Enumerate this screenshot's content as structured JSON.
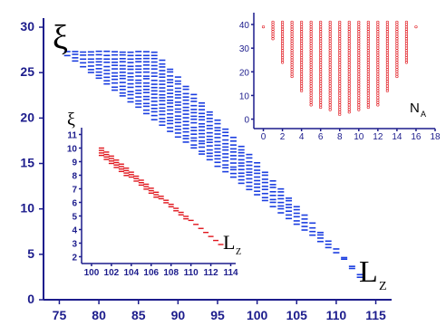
{
  "chart_data": [
    {
      "id": "main",
      "type": "scatter",
      "marker": "dash",
      "color": "#1a3de0",
      "xlabel": "L",
      "xlabel_sub": "Z",
      "ylabel": "ξ",
      "xlim": [
        73,
        117
      ],
      "ylim": [
        0,
        31
      ],
      "x_ticks": [
        "75",
        "80",
        "85",
        "90",
        "95",
        "100",
        "105",
        "110",
        "115"
      ],
      "y_ticks": [
        "0",
        "5",
        "10",
        "15",
        "20",
        "25",
        "30"
      ],
      "envelope": {
        "x_start": 76,
        "x_end": 113,
        "top_y": 27.3,
        "top_flat_until": 87,
        "top_slope": -0.945,
        "bottom_y_at_start": 26.9,
        "bottom_slope": -0.64,
        "bottom_min_y": 2.6
      }
    },
    {
      "id": "inset-lower-left",
      "type": "scatter",
      "marker": "dash",
      "color": "#e0141b",
      "xlabel": "L",
      "xlabel_sub": "Z",
      "ylabel": "ξ",
      "xlim": [
        99,
        114.5
      ],
      "ylim": [
        1.5,
        11.5
      ],
      "x_ticks": [
        "100",
        "102",
        "104",
        "106",
        "108",
        "110",
        "112",
        "114"
      ],
      "y_ticks": [
        "2",
        "3",
        "4",
        "5",
        "6",
        "7",
        "8",
        "9",
        "10",
        "11"
      ],
      "diagonal": {
        "x_start": 101,
        "x_end": 113,
        "y_start": 10.0,
        "y_end": 2.9
      }
    },
    {
      "id": "inset-top-right",
      "type": "scatter",
      "marker": "circle",
      "color": "#e0141b",
      "xlabel": "N",
      "xlabel_sub": "A",
      "ylabel": "",
      "xlim": [
        -1,
        18
      ],
      "ylim": [
        -4,
        45
      ],
      "x_ticks": [
        "0",
        "2",
        "4",
        "6",
        "8",
        "10",
        "12",
        "14",
        "16",
        "18"
      ],
      "y_ticks": [
        "0",
        "10",
        "20",
        "30",
        "40"
      ],
      "columns": {
        "x": [
          0,
          1,
          2,
          3,
          4,
          5,
          6,
          7,
          8,
          9,
          10,
          11,
          12,
          13,
          14,
          15,
          16
        ],
        "min": [
          39,
          34,
          24,
          18,
          12,
          6,
          5,
          4,
          2,
          3,
          4,
          5,
          6,
          12,
          18,
          24,
          39
        ],
        "max": [
          39,
          41,
          41,
          41,
          41,
          41,
          41,
          41,
          41,
          41,
          41,
          41,
          41,
          41,
          41,
          41,
          39
        ]
      }
    }
  ]
}
